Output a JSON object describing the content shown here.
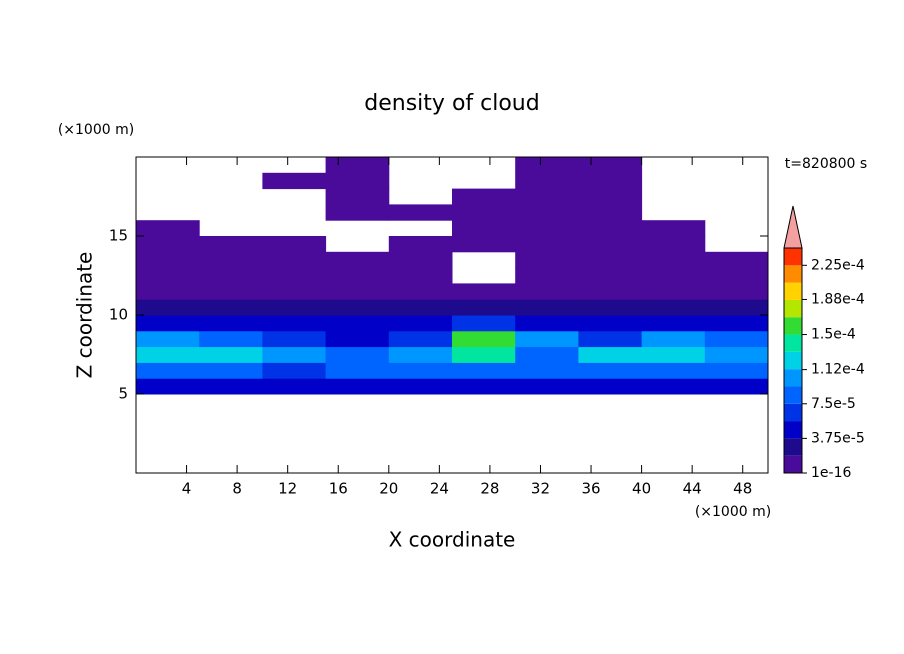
{
  "chart_data": {
    "type": "contour",
    "title": "density of cloud",
    "xlabel": "X coordinate",
    "ylabel": "Z coordinate",
    "x_unit": "(×1000 m)",
    "y_unit": "(×1000 m)",
    "annotation": "t=820800 s",
    "xlim": [
      0,
      50
    ],
    "ylim": [
      0,
      20
    ],
    "xticks": [
      4,
      8,
      12,
      16,
      20,
      24,
      28,
      32,
      36,
      40,
      44,
      48
    ],
    "yticks": [
      5,
      10,
      15
    ],
    "x_edges": [
      0,
      5,
      10,
      15,
      20,
      25,
      30,
      35,
      40,
      45,
      50
    ],
    "z_edges": [
      5,
      6,
      7,
      8,
      9,
      10,
      11,
      12,
      13,
      14,
      15,
      16,
      17,
      18,
      19,
      20
    ],
    "values": [
      [
        4e-05,
        4e-05,
        4e-05,
        4e-05,
        4e-05,
        4e-05,
        4e-05,
        4e-05,
        4e-05,
        4e-05
      ],
      [
        9e-05,
        9e-05,
        7e-05,
        9e-05,
        9e-05,
        9e-05,
        9e-05,
        9e-05,
        9e-05,
        9e-05
      ],
      [
        0.00013,
        0.00012,
        0.00011,
        8e-05,
        0.0001,
        0.00014,
        9e-05,
        0.00012,
        0.00012,
        0.00011
      ],
      [
        0.00011,
        9e-05,
        6e-05,
        5e-05,
        6e-05,
        0.00016,
        0.0001,
        6e-05,
        0.00011,
        8e-05
      ],
      [
        4e-05,
        4e-05,
        4e-05,
        4e-05,
        4e-05,
        6e-05,
        5e-05,
        4e-05,
        5e-05,
        4e-05
      ],
      [
        2.5e-05,
        2.5e-05,
        2.5e-05,
        2.5e-05,
        2.5e-05,
        2.5e-05,
        2.5e-05,
        2.5e-05,
        2.5e-05,
        2.5e-05
      ],
      [
        1e-05,
        1e-05,
        1e-05,
        1e-05,
        1e-05,
        1e-05,
        1e-05,
        1e-05,
        1e-05,
        1e-05
      ],
      [
        1e-05,
        1e-05,
        1e-05,
        1e-05,
        1e-05,
        null,
        1e-05,
        1e-05,
        1e-05,
        1e-05
      ],
      [
        1e-05,
        1e-05,
        1e-05,
        1e-05,
        1e-05,
        null,
        1e-05,
        1e-05,
        1e-05,
        1e-05
      ],
      [
        1e-05,
        1e-05,
        1e-05,
        null,
        1e-05,
        1e-05,
        1e-05,
        1e-05,
        1e-05,
        null
      ],
      [
        1e-05,
        null,
        null,
        null,
        null,
        1e-05,
        1e-05,
        1e-05,
        1e-05,
        null
      ],
      [
        null,
        null,
        null,
        1e-05,
        1e-05,
        1e-05,
        1e-05,
        1e-05,
        null,
        null
      ],
      [
        null,
        null,
        null,
        1e-05,
        null,
        1e-05,
        1e-05,
        1e-05,
        null,
        null
      ],
      [
        null,
        null,
        1e-05,
        1e-05,
        null,
        null,
        1e-05,
        1e-05,
        null,
        null
      ],
      [
        null,
        null,
        null,
        1e-05,
        null,
        null,
        1e-05,
        1e-05,
        null,
        null
      ]
    ],
    "colorbar": {
      "levels": [
        1e-16,
        1.875e-05,
        3.75e-05,
        5.625e-05,
        7.5e-05,
        9.375e-05,
        0.0001125,
        0.00013125,
        0.00015,
        0.00016875,
        0.0001875,
        0.00020625,
        0.000225
      ],
      "lim": [
        1e-16,
        0.00024375
      ],
      "colors": [
        "#4a0a9a",
        "#1e0a8c",
        "#0000c8",
        "#0032e6",
        "#0064ff",
        "#0096ff",
        "#00d2e6",
        "#00e6a0",
        "#32dc32",
        "#b4e600",
        "#ffd200",
        "#ff8c00",
        "#ff3200"
      ],
      "extend_color": "#f4a0a0",
      "ticks": [
        {
          "value": 1e-16,
          "label": "1e-16"
        },
        {
          "value": 3.75e-05,
          "label": "3.75e-5"
        },
        {
          "value": 7.5e-05,
          "label": "7.5e-5"
        },
        {
          "value": 0.000112,
          "label": "1.12e-4"
        },
        {
          "value": 0.00015,
          "label": "1.5e-4"
        },
        {
          "value": 0.000188,
          "label": "1.88e-4"
        },
        {
          "value": 0.000225,
          "label": "2.25e-4"
        }
      ]
    }
  }
}
